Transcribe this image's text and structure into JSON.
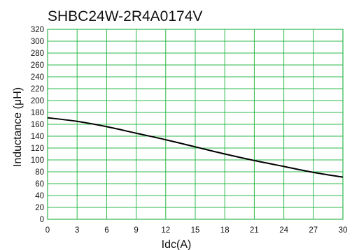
{
  "chart_data": {
    "type": "line",
    "title": "SHBC24W-2R4A0174V",
    "xlabel": "Idc(A)",
    "ylabel": "Inductance (μH)",
    "xlim": [
      0,
      30
    ],
    "ylim": [
      0,
      320
    ],
    "x_ticks": [
      "0",
      "3",
      "6",
      "9",
      "12",
      "15",
      "18",
      "21",
      "24",
      "27",
      "30"
    ],
    "y_ticks": [
      "0",
      "20",
      "40",
      "60",
      "80",
      "100",
      "120",
      "140",
      "160",
      "180",
      "200",
      "220",
      "240",
      "260",
      "280",
      "300",
      "320"
    ],
    "grid": true,
    "grid_color": "#2db84b",
    "line_color": "#000000",
    "series": [
      {
        "x": [
          0,
          3,
          6,
          9,
          12,
          15,
          18,
          21,
          24,
          27,
          30
        ],
        "values": [
          171,
          165,
          156,
          145,
          134,
          122,
          110,
          99,
          89,
          79,
          71
        ]
      }
    ]
  }
}
